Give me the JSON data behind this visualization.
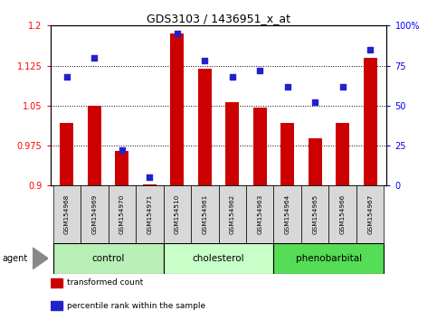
{
  "title": "GDS3103 / 1436951_x_at",
  "samples": [
    "GSM154968",
    "GSM154969",
    "GSM154970",
    "GSM154971",
    "GSM154510",
    "GSM154961",
    "GSM154962",
    "GSM154963",
    "GSM154964",
    "GSM154965",
    "GSM154966",
    "GSM154967"
  ],
  "transformed_count": [
    1.018,
    1.05,
    0.965,
    0.902,
    1.185,
    1.12,
    1.057,
    1.047,
    1.018,
    0.988,
    1.018,
    1.14
  ],
  "percentile_rank": [
    68,
    80,
    22,
    5,
    95,
    78,
    68,
    72,
    62,
    52,
    62,
    85
  ],
  "groups": [
    {
      "label": "control",
      "start": 0,
      "end": 4,
      "color": "#b8f0b8"
    },
    {
      "label": "cholesterol",
      "start": 4,
      "end": 8,
      "color": "#c8ffc8"
    },
    {
      "label": "phenobarbital",
      "start": 8,
      "end": 12,
      "color": "#55dd55"
    }
  ],
  "ylim_left": [
    0.9,
    1.2
  ],
  "ylim_right": [
    0,
    100
  ],
  "yticks_left": [
    0.9,
    0.975,
    1.05,
    1.125,
    1.2
  ],
  "yticks_right": [
    0,
    25,
    50,
    75,
    100
  ],
  "ytick_labels_left": [
    "0.9",
    "0.975",
    "1.05",
    "1.125",
    "1.2"
  ],
  "ytick_labels_right": [
    "0",
    "25",
    "50",
    "75",
    "100%"
  ],
  "bar_color": "#cc0000",
  "dot_color": "#2222cc",
  "bar_width": 0.5,
  "agent_label": "agent",
  "sample_bg": "#d8d8d8",
  "legend_items": [
    {
      "label": "transformed count",
      "color": "#cc0000"
    },
    {
      "label": "percentile rank within the sample",
      "color": "#2222cc"
    }
  ]
}
